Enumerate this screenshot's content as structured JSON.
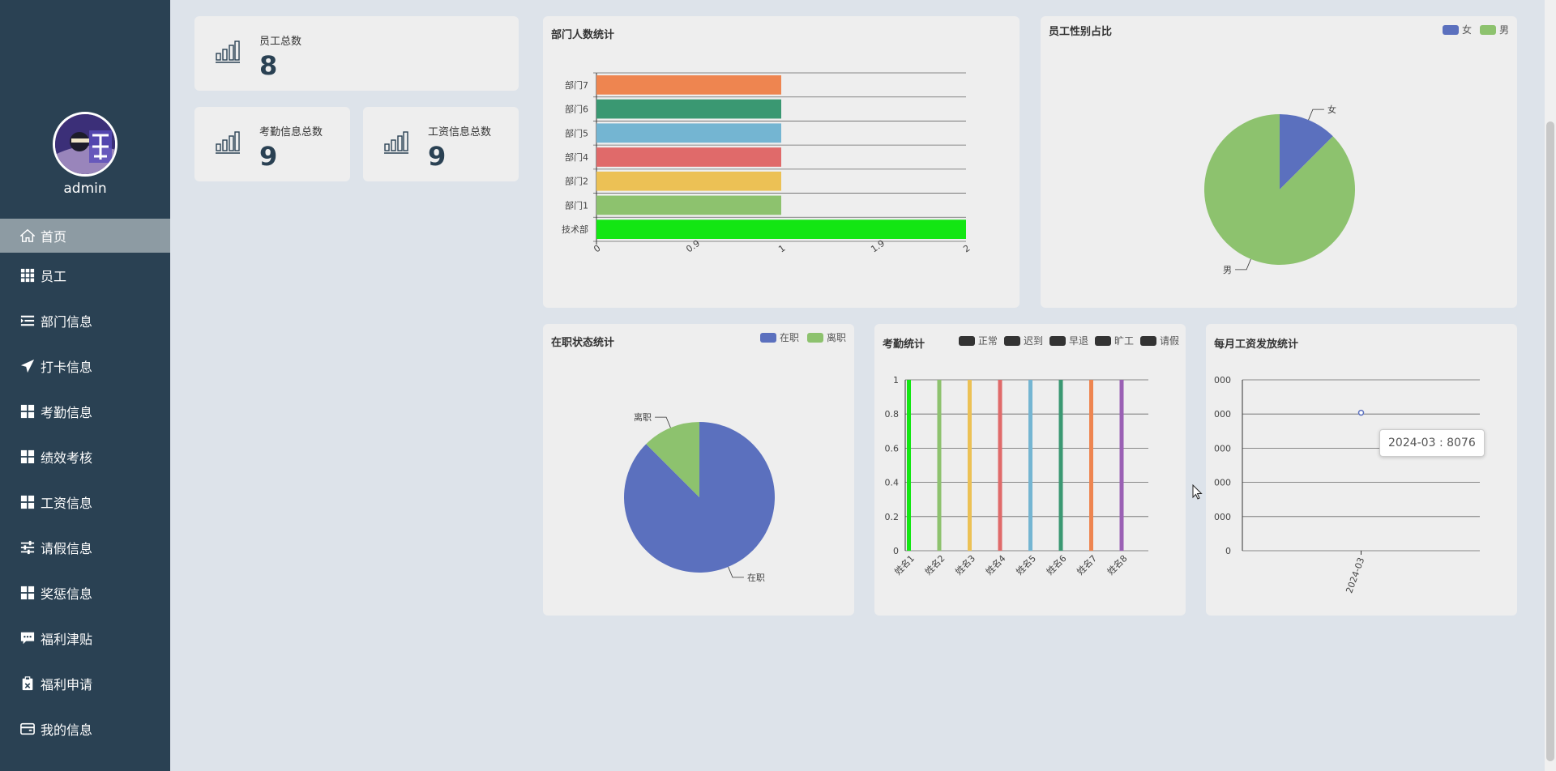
{
  "sidebar": {
    "username": "admin",
    "items": [
      {
        "label": "首页",
        "icon": "home-icon"
      },
      {
        "label": "员工",
        "icon": "grid-icon"
      },
      {
        "label": "部门信息",
        "icon": "list-icon"
      },
      {
        "label": "打卡信息",
        "icon": "send-icon"
      },
      {
        "label": "考勤信息",
        "icon": "grid-icon"
      },
      {
        "label": "绩效考核",
        "icon": "grid-icon"
      },
      {
        "label": "工资信息",
        "icon": "grid-icon"
      },
      {
        "label": "请假信息",
        "icon": "sliders-icon"
      },
      {
        "label": "奖惩信息",
        "icon": "grid-icon"
      },
      {
        "label": "福利津贴",
        "icon": "chat-icon"
      },
      {
        "label": "福利申请",
        "icon": "clipboard-icon"
      },
      {
        "label": "我的信息",
        "icon": "wallet-icon"
      }
    ],
    "active_index": 0
  },
  "stats": {
    "employees": {
      "label": "员工总数",
      "value": "8"
    },
    "attendance": {
      "label": "考勤信息总数",
      "value": "9"
    },
    "salary": {
      "label": "工资信息总数",
      "value": "9"
    }
  },
  "colors": {
    "sidebar_bg": "#2a4153",
    "active_item": "#8d9ba3",
    "card_bg": "#eeeeee",
    "page_bg": "#dde3ea"
  },
  "chart_data": [
    {
      "id": "dept",
      "type": "bar",
      "orientation": "horizontal",
      "title": "部门人数统计",
      "categories": [
        "技术部",
        "部门1",
        "部门2",
        "部门4",
        "部门5",
        "部门6",
        "部门7"
      ],
      "values": [
        2,
        1,
        1,
        1,
        1,
        1,
        1
      ],
      "colors": [
        "#13e613",
        "#8dc26e",
        "#ecc155",
        "#e06a6a",
        "#74b5d2",
        "#3a9872",
        "#ee8550"
      ],
      "xticks": [
        "0",
        "0.9",
        "1",
        "1.9",
        "2"
      ],
      "xlim": [
        0,
        2
      ],
      "grid": true
    },
    {
      "id": "gender",
      "type": "pie",
      "title": "员工性别占比",
      "legend": [
        "女",
        "男"
      ],
      "slices": [
        {
          "label": "女",
          "value": 1,
          "color": "#5b70be"
        },
        {
          "label": "男",
          "value": 7,
          "color": "#8dc26e"
        }
      ],
      "legend_position": "top-right"
    },
    {
      "id": "status",
      "type": "pie",
      "title": "在职状态统计",
      "legend": [
        "在职",
        "离职"
      ],
      "slices": [
        {
          "label": "在职",
          "value": 7,
          "color": "#5b70be"
        },
        {
          "label": "离职",
          "value": 1,
          "color": "#8dc26e"
        }
      ],
      "legend_position": "top-right"
    },
    {
      "id": "attendance",
      "type": "bar",
      "title": "考勤统计",
      "legend": [
        "正常",
        "迟到",
        "早退",
        "旷工",
        "请假"
      ],
      "legend_color": "#333333",
      "categories": [
        "姓名1",
        "姓名2",
        "姓名3",
        "姓名4",
        "姓名5",
        "姓名6",
        "姓名7",
        "姓名8"
      ],
      "values": [
        1,
        1,
        1,
        1,
        1,
        1,
        1,
        1
      ],
      "colors": [
        "#13e613",
        "#8dc26e",
        "#ecc155",
        "#e06a6a",
        "#74b5d2",
        "#3a9872",
        "#ee8550",
        "#9a60b4"
      ],
      "yticks": [
        "0",
        "0.2",
        "0.4",
        "0.6",
        "0.8",
        "1"
      ],
      "ylim": [
        0,
        1
      ],
      "grid": true
    },
    {
      "id": "salary",
      "type": "line",
      "title": "每月工资发放统计",
      "x": [
        "2024-03"
      ],
      "values": [
        8076
      ],
      "yticks": [
        "0",
        "000",
        "000",
        "000",
        "000",
        "000"
      ],
      "ylim": [
        0,
        10000
      ],
      "tooltip": "2024-03 : 8076",
      "grid": true
    }
  ]
}
